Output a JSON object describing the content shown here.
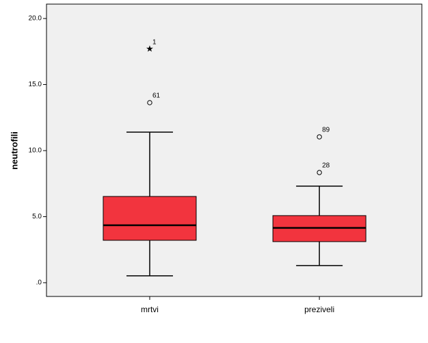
{
  "chart_data": {
    "type": "box",
    "ylabel": "neutrofili",
    "categories": [
      "mrtvi",
      "preziveli"
    ],
    "color": "#f2343e",
    "ylim": [
      -1.04,
      21.09
    ],
    "yticks": [
      {
        "value": 0,
        "label": ".0"
      },
      {
        "value": 5,
        "label": "5.0"
      },
      {
        "value": 10,
        "label": "10.0"
      },
      {
        "value": 15,
        "label": "15.0"
      },
      {
        "value": 20,
        "label": "20.0"
      }
    ],
    "boxes": [
      {
        "whislo": 0.52,
        "q1": 3.21,
        "med": 4.35,
        "q3": 6.53,
        "whishi": 11.4,
        "outliers": [
          {
            "case": "61",
            "value": 13.63,
            "marker": "circle"
          },
          {
            "case": "1",
            "value": 17.67,
            "marker": "star"
          }
        ]
      },
      {
        "whislo": 1.3,
        "q1": 3.11,
        "med": 4.15,
        "q3": 5.08,
        "whishi": 7.31,
        "outliers": [
          {
            "case": "28",
            "value": 8.34,
            "marker": "circle"
          },
          {
            "case": "89",
            "value": 11.04,
            "marker": "circle"
          }
        ]
      }
    ]
  }
}
